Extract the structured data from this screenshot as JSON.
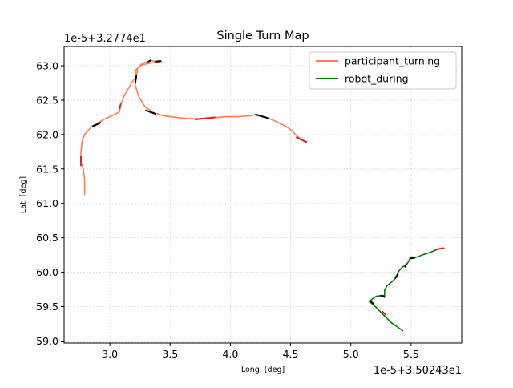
{
  "chart_data": {
    "type": "line",
    "title": "Single Turn Map",
    "xlabel": "Long. [deg]",
    "ylabel": "Lat. [deg]",
    "x_offset_label": "1e-5+3.50243e1",
    "y_offset_label": "1e-5+3.2774e1",
    "xlim": [
      2.62,
      5.92
    ],
    "ylim": [
      58.97,
      63.28
    ],
    "xticks": [
      3.0,
      3.5,
      4.0,
      4.5,
      5.0,
      5.5
    ],
    "xtick_labels": [
      "3.0",
      "3.5",
      "4.0",
      "4.5",
      "5.0",
      "5.5"
    ],
    "yticks": [
      59.0,
      59.5,
      60.0,
      60.5,
      61.0,
      61.5,
      62.0,
      62.5,
      63.0
    ],
    "ytick_labels": [
      "59.0",
      "59.5",
      "60.0",
      "60.5",
      "61.0",
      "61.5",
      "62.0",
      "62.5",
      "63.0"
    ],
    "grid": true,
    "legend_position": "top-right",
    "colors": {
      "participant_turning": "#ff7f50",
      "robot_during": "#008000",
      "marker_black": "#000000",
      "marker_red": "#d62728",
      "marker_darkred": "#8b0000",
      "grid": "#d9d9d9"
    },
    "series": [
      {
        "name": "participant_turning",
        "x": [
          2.79,
          2.79,
          2.78,
          2.76,
          2.76,
          2.77,
          2.79,
          2.85,
          2.95,
          3.05,
          3.08,
          3.09,
          3.12,
          3.17,
          3.22,
          3.21,
          3.24,
          3.26,
          3.28,
          3.31,
          3.34,
          3.38,
          3.43,
          3.41,
          3.38,
          3.31,
          3.26,
          3.23,
          3.21,
          3.24,
          3.29,
          3.36,
          3.45,
          3.55,
          3.65,
          3.75,
          3.85,
          3.95,
          4.05,
          4.15,
          4.22,
          4.3,
          4.38,
          4.46,
          4.51,
          4.55,
          4.6,
          4.63
        ],
        "y": [
          61.13,
          61.35,
          61.5,
          61.6,
          61.75,
          61.9,
          62.0,
          62.12,
          62.22,
          62.3,
          62.33,
          62.43,
          62.57,
          62.72,
          62.85,
          62.93,
          62.98,
          63.02,
          63.04,
          63.06,
          63.07,
          63.07,
          63.06,
          63.06,
          63.05,
          63.03,
          63.01,
          62.96,
          62.72,
          62.55,
          62.41,
          62.32,
          62.27,
          62.25,
          62.23,
          62.23,
          62.24,
          62.26,
          62.26,
          62.27,
          62.29,
          62.25,
          62.19,
          62.12,
          62.06,
          61.98,
          61.92,
          61.9
        ]
      },
      {
        "name": "robot_during",
        "x": [
          5.43,
          5.34,
          5.27,
          5.21,
          5.15,
          5.17,
          5.21,
          5.25,
          5.28,
          5.28,
          5.3,
          5.34,
          5.37,
          5.38,
          5.4,
          5.43,
          5.45,
          5.47,
          5.48,
          5.49,
          5.49,
          5.52,
          5.55,
          5.59,
          5.66,
          5.73,
          5.77
        ],
        "y": [
          59.15,
          59.26,
          59.38,
          59.49,
          59.58,
          59.6,
          59.65,
          59.66,
          59.66,
          59.74,
          59.8,
          59.86,
          59.91,
          59.95,
          60.02,
          60.08,
          60.1,
          60.13,
          60.16,
          60.2,
          60.22,
          60.22,
          60.22,
          60.25,
          60.29,
          60.34,
          60.35
        ]
      }
    ],
    "black_segments": [
      [
        [
          2.86,
          62.12
        ],
        [
          2.92,
          62.17
        ]
      ],
      [
        [
          3.21,
          62.75
        ],
        [
          3.22,
          62.85
        ]
      ],
      [
        [
          3.32,
          63.06
        ],
        [
          3.34,
          63.08
        ]
      ],
      [
        [
          3.38,
          63.06
        ],
        [
          3.42,
          63.07
        ]
      ],
      [
        [
          3.3,
          62.35
        ],
        [
          3.38,
          62.3
        ]
      ],
      [
        [
          4.21,
          62.29
        ],
        [
          4.31,
          62.24
        ]
      ],
      [
        [
          5.16,
          59.58
        ],
        [
          5.19,
          59.54
        ]
      ],
      [
        [
          5.25,
          59.66
        ],
        [
          5.28,
          59.64
        ]
      ],
      [
        [
          5.37,
          59.92
        ],
        [
          5.39,
          59.97
        ]
      ],
      [
        [
          5.45,
          60.08
        ],
        [
          5.46,
          60.12
        ]
      ],
      [
        [
          5.5,
          60.2
        ],
        [
          5.53,
          60.21
        ]
      ]
    ],
    "red_segments": [
      [
        [
          2.76,
          61.68
        ],
        [
          2.76,
          61.55
        ]
      ],
      [
        [
          3.08,
          62.38
        ],
        [
          3.09,
          62.44
        ]
      ],
      [
        [
          3.71,
          62.22
        ],
        [
          3.87,
          62.25
        ]
      ],
      [
        [
          4.55,
          61.96
        ],
        [
          4.63,
          61.89
        ]
      ],
      [
        [
          5.26,
          59.43
        ],
        [
          5.29,
          59.38
        ]
      ],
      [
        [
          5.7,
          60.33
        ],
        [
          5.77,
          60.35
        ]
      ]
    ]
  }
}
